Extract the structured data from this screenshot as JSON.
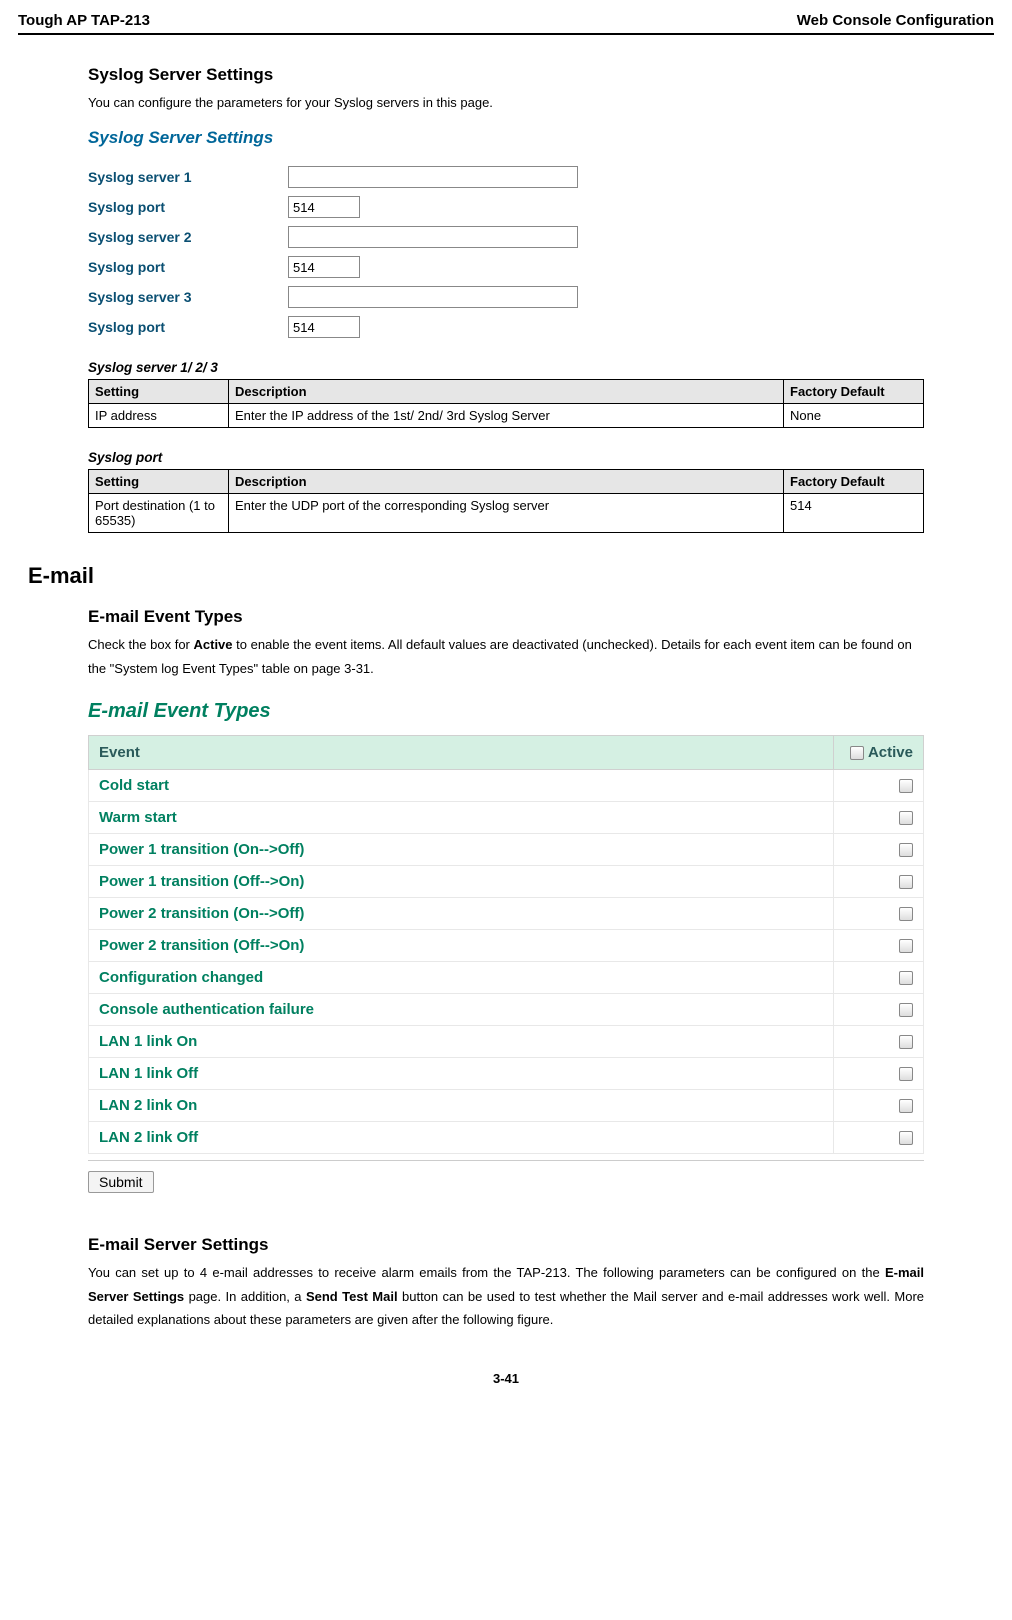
{
  "header": {
    "left": "Tough AP TAP-213",
    "right": "Web Console Configuration"
  },
  "syslog": {
    "title": "Syslog Server Settings",
    "intro": "You can configure the parameters for your Syslog servers in this page.",
    "panel_title": "Syslog Server Settings",
    "rows": [
      {
        "label": "Syslog server 1",
        "type": "long",
        "value": ""
      },
      {
        "label": "Syslog port",
        "type": "short",
        "value": "514"
      },
      {
        "label": "Syslog server 2",
        "type": "long",
        "value": ""
      },
      {
        "label": "Syslog port",
        "type": "short",
        "value": "514"
      },
      {
        "label": "Syslog server 3",
        "type": "long",
        "value": ""
      },
      {
        "label": "Syslog port",
        "type": "short",
        "value": "514"
      }
    ],
    "t1": {
      "caption": "Syslog server 1/ 2/ 3",
      "cols": [
        "Setting",
        "Description",
        "Factory Default"
      ],
      "row": [
        "IP address",
        "Enter the IP address of the 1st/ 2nd/ 3rd Syslog Server",
        "None"
      ]
    },
    "t2": {
      "caption": "Syslog port",
      "cols": [
        "Setting",
        "Description",
        "Factory Default"
      ],
      "row": [
        "Port destination (1 to 65535)",
        "Enter the UDP port of the corresponding Syslog server",
        "514"
      ]
    }
  },
  "email": {
    "section": "E-mail",
    "types": {
      "title": "E-mail Event Types",
      "intro_pre": "Check the box for ",
      "intro_bold": "Active",
      "intro_post": " to enable the event items. All default values are deactivated (unchecked). Details for each event item can be found on the \"System log Event Types\" table on page 3-31.",
      "panel_title": "E-mail Event Types",
      "col_event": "Event",
      "col_active": "Active",
      "events": [
        "Cold start",
        "Warm start",
        "Power 1 transition (On-->Off)",
        "Power 1 transition (Off-->On)",
        "Power 2 transition (On-->Off)",
        "Power 2 transition (Off-->On)",
        "Configuration changed",
        "Console authentication failure",
        "LAN 1 link On",
        "LAN 1 link Off",
        "LAN 2 link On",
        "LAN 2 link Off"
      ],
      "submit": "Submit"
    },
    "server": {
      "title": "E-mail Server Settings",
      "p_pre": "You can set up to 4 e-mail addresses to receive alarm emails from the TAP-213. The following parameters can be configured on the ",
      "p_b1": "E-mail Server Settings",
      "p_mid": " page. In addition, a ",
      "p_b2": "Send Test Mail",
      "p_post": " button can be used to test whether the Mail server and e-mail addresses work well. More detailed explanations about these parameters are given after the following figure."
    }
  },
  "page_number": "3-41"
}
